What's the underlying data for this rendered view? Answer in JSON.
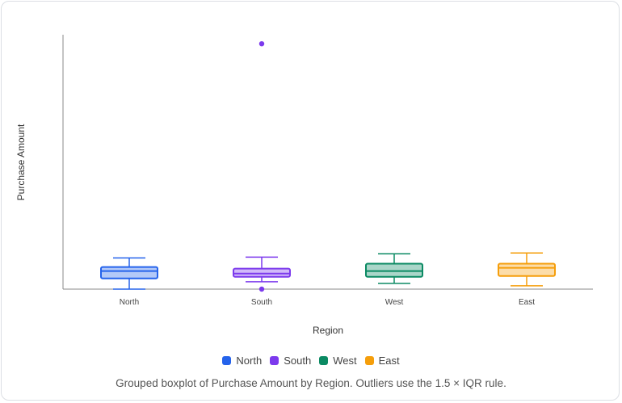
{
  "chart_data": {
    "type": "boxplot",
    "xlabel": "Region",
    "ylabel": "Purchase Amount",
    "ylim": [
      0,
      310
    ],
    "categories": [
      "North",
      "South",
      "West",
      "East"
    ],
    "colors": {
      "North": "#2563eb",
      "South": "#7c3aed",
      "West": "#0b8a63",
      "East": "#f59e0b"
    },
    "boxes": [
      {
        "category": "North",
        "min": 0,
        "q1": 13,
        "median": 22,
        "q3": 27,
        "max": 38,
        "outliers": []
      },
      {
        "category": "South",
        "min": 9,
        "q1": 15,
        "median": 19,
        "q3": 25,
        "max": 39,
        "outliers": [
          299,
          0
        ]
      },
      {
        "category": "West",
        "min": 7,
        "q1": 15,
        "median": 22,
        "q3": 31,
        "max": 43,
        "outliers": []
      },
      {
        "category": "East",
        "min": 4,
        "q1": 16,
        "median": 26,
        "q3": 31,
        "max": 44,
        "outliers": []
      }
    ],
    "legend": [
      "North",
      "South",
      "West",
      "East"
    ],
    "legend_position": "bottom",
    "grid": false
  },
  "caption": "Grouped boxplot of Purchase Amount by Region. Outliers use the 1.5 × IQR rule."
}
